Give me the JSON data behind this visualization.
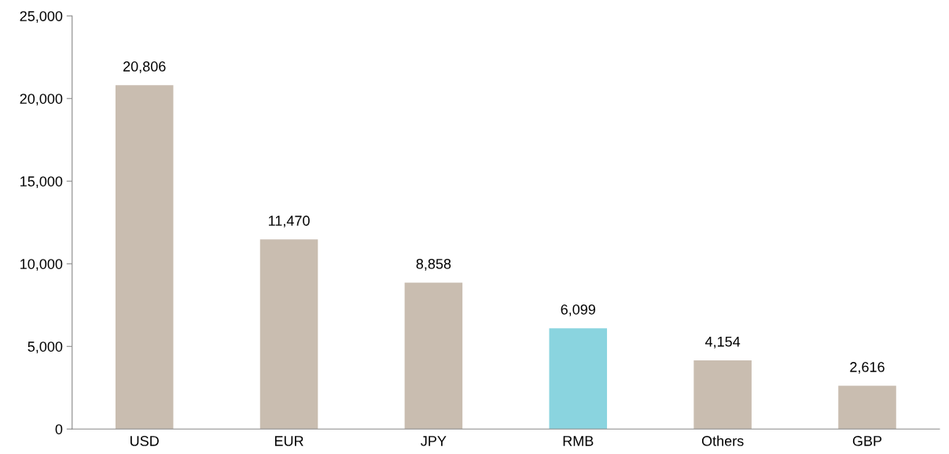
{
  "chart_data": {
    "type": "bar",
    "categories": [
      "USD",
      "EUR",
      "JPY",
      "RMB",
      "Others",
      "GBP"
    ],
    "values": [
      20806,
      11470,
      8858,
      6099,
      4154,
      2616
    ],
    "colors": [
      "#c9bdb0",
      "#c9bdb0",
      "#c9bdb0",
      "#8ad4df",
      "#c9bdb0",
      "#c9bdb0"
    ],
    "value_labels": [
      "20,806",
      "11,470",
      "8,858",
      "6,099",
      "4,154",
      "2,616"
    ],
    "ylim": [
      0,
      25000
    ],
    "yticks": [
      {
        "value": 0,
        "label": "0"
      },
      {
        "value": 5000,
        "label": "5,000"
      },
      {
        "value": 10000,
        "label": "10,000"
      },
      {
        "value": 15000,
        "label": "15,000"
      },
      {
        "value": 20000,
        "label": "20,000"
      },
      {
        "value": 25000,
        "label": "25,000"
      }
    ],
    "grid": false
  }
}
